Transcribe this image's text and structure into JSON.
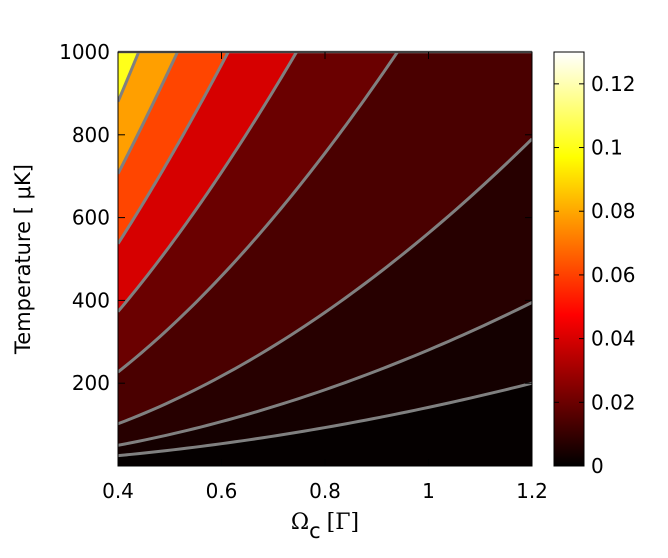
{
  "chart_data": {
    "type": "heatmap",
    "subtype": "filled-contour",
    "title": "",
    "xlabel": {
      "symbol": "Ω",
      "subscript": "c",
      "unit": "[Γ]"
    },
    "ylabel": "Temperature [ μK]",
    "xlim": [
      0.4,
      1.2
    ],
    "ylim": [
      0,
      1000
    ],
    "x_ticks": [
      {
        "value": 0.4,
        "label": "0.4"
      },
      {
        "value": 0.6,
        "label": "0.6"
      },
      {
        "value": 0.8,
        "label": "0.8"
      },
      {
        "value": 1.0,
        "label": "1"
      },
      {
        "value": 1.2,
        "label": "1.2"
      }
    ],
    "y_ticks": [
      {
        "value": 200,
        "label": "200"
      },
      {
        "value": 400,
        "label": "400"
      },
      {
        "value": 600,
        "label": "600"
      },
      {
        "value": 800,
        "label": "800"
      },
      {
        "value": 1000,
        "label": "1000"
      }
    ],
    "colorbar": {
      "colormap": "hot",
      "range": [
        0,
        0.13
      ],
      "ticks": [
        {
          "value": 0,
          "label": "0"
        },
        {
          "value": 0.02,
          "label": "0.02"
        },
        {
          "value": 0.04,
          "label": "0.04"
        },
        {
          "value": 0.06,
          "label": "0.06"
        },
        {
          "value": 0.08,
          "label": "0.08"
        },
        {
          "value": 0.1,
          "label": "0.1"
        },
        {
          "value": 0.12,
          "label": "0.12"
        }
      ]
    },
    "contour_line_color": "#808080",
    "contours": [
      {
        "level": 0.005,
        "fill": "#050000",
        "points": [
          [
            0.4,
            25
          ],
          [
            1.2,
            200
          ]
        ]
      },
      {
        "level": 0.01,
        "fill": "#140000",
        "points": [
          [
            0.4,
            50
          ],
          [
            1.2,
            395
          ]
        ]
      },
      {
        "level": 0.02,
        "fill": "#270000",
        "points": [
          [
            0.4,
            102
          ],
          [
            1.2,
            790
          ]
        ]
      },
      {
        "level": 0.04,
        "fill": "#4a0000",
        "points": [
          [
            0.4,
            227
          ],
          [
            0.94,
            1000
          ]
        ]
      },
      {
        "level": 0.06,
        "fill": "#6a0000",
        "points": [
          [
            0.4,
            373
          ],
          [
            0.745,
            1000
          ]
        ]
      },
      {
        "level": 0.08,
        "fill": "#d60000",
        "points": [
          [
            0.4,
            537
          ],
          [
            0.613,
            1000
          ]
        ]
      },
      {
        "level": 0.1,
        "fill": "#ff4500",
        "points": [
          [
            0.4,
            706
          ],
          [
            0.515,
            1000
          ]
        ]
      },
      {
        "level": 0.12,
        "fill": "#ff9f00",
        "points": [
          [
            0.4,
            880
          ],
          [
            0.44,
            1000
          ]
        ]
      },
      {
        "level": 0.13,
        "fill": "#ffff1a",
        "points": []
      }
    ],
    "top_region_fill": "#ffffc0"
  }
}
